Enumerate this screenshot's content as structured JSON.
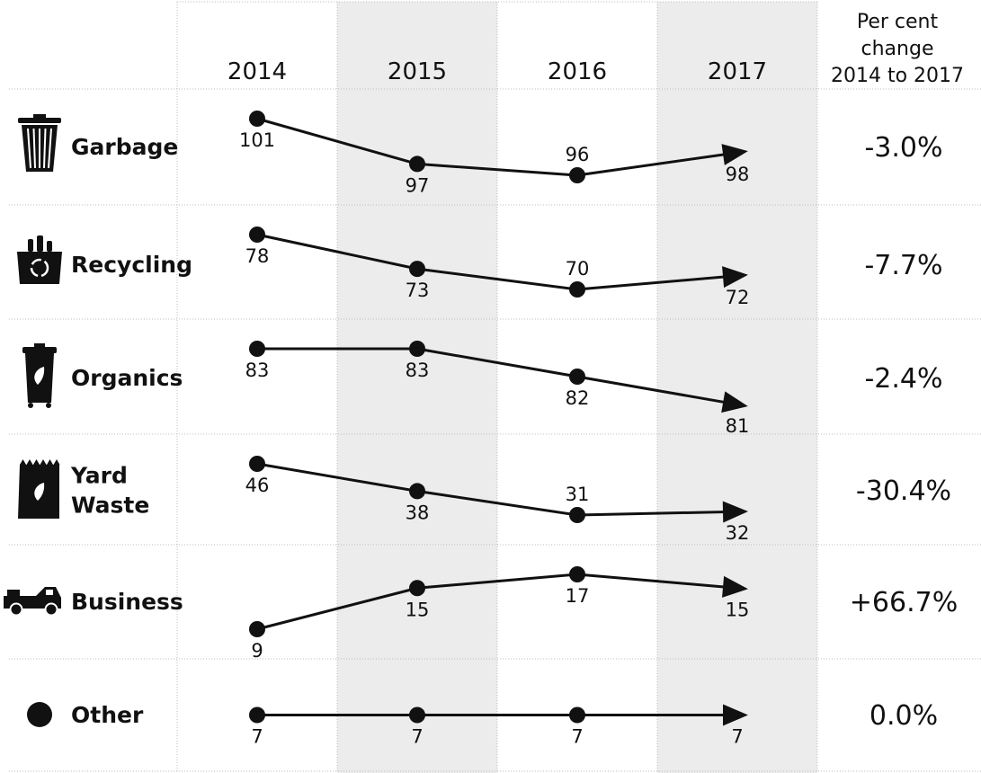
{
  "header": {
    "years": [
      "2014",
      "2015",
      "2016",
      "2017"
    ],
    "change_label_lines": [
      "Per cent",
      "change",
      "2014 to 2017"
    ]
  },
  "colors": {
    "line": "#111111",
    "shaded_column": "#ececec",
    "divider": "#bdbdbd"
  },
  "chart_data": {
    "type": "line",
    "categories": [
      "2014",
      "2015",
      "2016",
      "2017"
    ],
    "series": [
      {
        "name": "Garbage",
        "label_lines": [
          "Garbage"
        ],
        "icon": "garbage-bin-icon",
        "values": [
          101,
          97,
          96,
          98
        ],
        "change": "-3.0%"
      },
      {
        "name": "Recycling",
        "label_lines": [
          "Recycling"
        ],
        "icon": "recycling-box-icon",
        "values": [
          78,
          73,
          70,
          72
        ],
        "change": "-7.7%"
      },
      {
        "name": "Organics",
        "label_lines": [
          "Organics"
        ],
        "icon": "organics-bin-icon",
        "values": [
          83,
          83,
          82,
          81
        ],
        "change": "-2.4%"
      },
      {
        "name": "Yard Waste",
        "label_lines": [
          "Yard",
          "Waste"
        ],
        "icon": "yard-waste-bag-icon",
        "values": [
          46,
          38,
          31,
          32
        ],
        "change": "-30.4%"
      },
      {
        "name": "Business",
        "label_lines": [
          "Business"
        ],
        "icon": "pickup-truck-icon",
        "values": [
          9,
          15,
          17,
          15
        ],
        "change": "+66.7%"
      },
      {
        "name": "Other",
        "label_lines": [
          "Other"
        ],
        "icon": "dot-icon",
        "values": [
          7,
          7,
          7,
          7
        ],
        "change": "0.0%"
      }
    ]
  }
}
